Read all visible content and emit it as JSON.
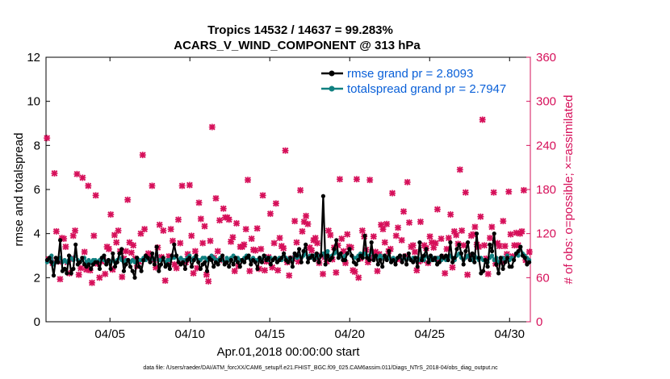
{
  "chart_data": {
    "type": "line",
    "title_line1": "Tropics 14532 / 14637 = 99.283%",
    "title_line2": "ACARS_V_WIND_COMPONENT @ 313 hPa",
    "xlabel": "Apr.01,2018 00:00:00 start",
    "ylabel_left": "rmse and totalspread",
    "ylabel_right": "# of obs: o=possible; ×=assimilated",
    "footer": "data file: /Users/raeder/DAI/ATM_forcXX/CAM6_setup/f.e21.FHIST_BGC.f09_025.CAM6assim.011/Diags_NTrS_2018-04/obs_diag_output.nc",
    "xlim": [
      1,
      31.3
    ],
    "ylim_left": [
      0,
      12
    ],
    "ylim_right": [
      0,
      360
    ],
    "x_ticks": [
      {
        "x": 5,
        "label": "04/05"
      },
      {
        "x": 10,
        "label": "04/10"
      },
      {
        "x": 15,
        "label": "04/15"
      },
      {
        "x": 20,
        "label": "04/20"
      },
      {
        "x": 25,
        "label": "04/25"
      },
      {
        "x": 30,
        "label": "04/30"
      }
    ],
    "y_ticks_left": [
      "0",
      "2",
      "4",
      "6",
      "8",
      "10",
      "12"
    ],
    "y_ticks_right": [
      "0",
      "60",
      "120",
      "180",
      "240",
      "300",
      "360"
    ],
    "colors": {
      "rmse": "#000000",
      "totalspread": "#108080",
      "obs": "#d6105a",
      "legend_text": "#0a60d8"
    },
    "series": [
      {
        "name": "rmse",
        "legend": "rmse grand pr = 2.8093",
        "values": [
          2.8,
          2.9,
          2.7,
          2.1,
          2.9,
          2.7,
          3.7,
          2.3,
          2.4,
          2.2,
          3.0,
          2.2,
          2.4,
          3.5,
          2.6,
          2.7,
          2.9,
          2.6,
          2.5,
          2.6,
          2.4,
          2.6,
          2.7,
          2.7,
          2.4,
          2.9,
          3.0,
          2.6,
          2.8,
          2.4,
          3.1,
          2.5,
          2.7,
          3.1,
          3.3,
          2.3,
          2.6,
          2.8,
          2.5,
          2.3,
          2.0,
          2.9,
          2.5,
          2.3,
          2.8,
          3.0,
          2.9,
          2.7,
          3.1,
          2.6,
          3.4,
          2.3,
          2.6,
          2.9,
          2.5,
          2.6,
          2.4,
          3.0,
          3.5,
          3.0,
          2.7,
          2.6,
          2.7,
          2.4,
          2.8,
          2.9,
          2.5,
          2.8,
          3.0,
          2.7,
          2.4,
          2.6,
          2.7,
          2.3,
          2.9,
          2.8,
          2.5,
          2.7,
          2.6,
          2.8,
          3.0,
          2.6,
          2.7,
          2.5,
          2.8,
          2.6,
          2.9,
          2.7,
          2.5,
          2.8,
          2.7,
          2.9,
          3.0,
          2.6,
          2.8,
          2.7,
          2.4,
          2.9,
          2.7,
          3.0,
          2.8,
          2.9,
          2.6,
          2.8,
          2.9,
          2.7,
          2.8,
          2.9,
          3.1,
          2.8,
          2.7,
          2.9,
          2.5,
          3.1,
          3.0,
          3.3,
          2.7,
          3.2,
          3.5,
          2.7,
          2.9,
          3.0,
          2.8,
          3.1,
          2.7,
          3.0,
          5.7,
          2.6,
          3.0,
          2.8,
          2.9,
          3.3,
          3.7,
          2.9,
          3.1,
          2.8,
          2.8,
          3.1,
          3.3,
          3.0,
          2.7,
          2.6,
          2.8,
          3.0,
          2.9,
          3.9,
          2.9,
          2.8,
          3.6,
          2.8,
          3.0,
          2.6,
          2.8,
          2.5,
          3.0,
          2.8,
          3.2,
          2.7,
          2.8,
          2.6,
          2.9,
          3.0,
          2.7,
          3.0,
          2.6,
          3.1,
          2.8,
          2.7,
          2.9,
          2.5,
          3.6,
          2.8,
          3.0,
          3.3,
          2.7,
          3.0,
          2.8,
          2.9,
          2.6,
          2.7,
          3.0,
          2.9,
          3.0,
          2.8,
          3.6,
          2.7,
          2.9,
          3.3,
          3.5,
          3.1,
          2.6,
          3.2,
          3.6,
          2.8,
          3.1,
          2.7,
          4.0,
          2.9,
          2.2,
          2.3,
          2.8,
          2.5,
          3.5,
          3.2,
          4.0,
          2.6,
          2.2,
          2.9,
          2.4,
          2.7,
          2.9,
          2.5,
          2.5,
          2.8,
          3.1,
          3.2,
          3.4,
          3.0,
          2.9,
          2.6,
          2.7
        ]
      },
      {
        "name": "totalspread",
        "legend": "totalspread grand pr = 2.7947",
        "values": [
          2.7,
          2.8,
          3.0,
          2.6,
          2.7,
          2.8,
          2.9,
          2.7,
          2.8,
          2.7,
          2.8,
          2.9,
          2.8,
          3.0,
          2.8,
          2.7,
          2.8,
          2.9,
          2.7,
          2.8,
          2.7,
          2.8,
          2.8,
          2.7,
          2.8,
          2.9,
          2.8,
          2.7,
          2.8,
          2.7,
          2.8,
          2.7,
          2.8,
          2.9,
          2.8,
          2.7,
          2.8,
          2.8,
          2.7,
          2.8,
          2.7,
          2.9,
          2.8,
          2.8,
          2.9,
          2.8,
          2.9,
          2.8,
          2.9,
          2.8,
          3.0,
          2.8,
          2.8,
          2.9,
          2.7,
          2.8,
          2.8,
          2.9,
          2.9,
          3.0,
          2.8,
          2.9,
          2.8,
          2.8,
          2.9,
          3.0,
          2.8,
          2.9,
          2.9,
          2.8,
          2.8,
          2.9,
          2.9,
          2.8,
          2.9,
          3.0,
          2.9,
          2.8,
          2.8,
          2.9,
          2.8,
          2.7,
          2.9,
          2.8,
          2.9,
          3.0,
          2.8,
          2.9,
          2.8,
          2.8,
          2.9,
          3.0,
          2.9,
          2.8,
          2.9,
          2.8,
          2.8,
          2.9,
          2.8,
          3.0,
          2.9,
          2.8,
          2.9,
          2.8,
          2.9,
          2.8,
          2.9,
          2.8,
          3.0,
          2.9,
          2.8,
          2.9,
          2.8,
          3.0,
          2.9,
          3.0,
          2.9,
          3.0,
          3.1,
          2.9,
          3.0,
          2.9,
          3.0,
          2.9,
          3.0,
          3.0,
          3.1,
          2.9,
          3.2,
          2.9,
          3.0,
          3.1,
          3.2,
          2.9,
          3.0,
          2.9,
          3.0,
          3.1,
          3.3,
          3.0,
          2.9,
          2.9,
          3.0,
          3.1,
          3.0,
          3.1,
          2.9,
          3.0,
          3.2,
          2.9,
          3.0,
          2.9,
          3.0,
          2.9,
          3.0,
          2.9,
          2.9,
          2.8,
          2.9,
          2.8,
          2.9,
          3.0,
          2.8,
          2.9,
          2.8,
          2.9,
          2.8,
          2.9,
          2.8,
          2.9,
          2.8,
          2.9,
          2.8,
          3.0,
          2.9,
          2.8,
          2.9,
          2.8,
          2.9,
          2.9,
          2.8,
          2.9,
          2.8,
          2.9,
          3.0,
          2.9,
          2.8,
          3.0,
          3.1,
          2.9,
          2.8,
          2.9,
          3.0,
          2.9,
          2.8,
          3.0,
          2.9,
          2.8,
          2.9,
          2.8,
          2.8,
          2.7,
          2.9,
          3.0,
          2.8,
          2.9,
          2.7,
          2.8,
          2.9,
          2.8,
          3.0,
          2.8,
          2.9,
          2.8,
          3.1,
          3.0,
          3.4,
          3.1,
          3.0,
          2.9,
          2.8
        ]
      },
      {
        "name": "obs_count",
        "legend": "",
        "values": [
          250,
          85,
          84,
          80,
          202,
          123,
          82,
          58,
          114,
          113,
          102,
          81,
          66,
          86,
          117,
          124,
          201,
          64,
          73,
          196,
          95,
          71,
          185,
          70,
          53,
          117,
          172,
          79,
          60,
          82,
          84,
          65,
          102,
          99,
          146,
          71,
          118,
          108,
          124,
          96,
          61,
          86,
          96,
          166,
          108,
          94,
          104,
          86,
          76,
          82,
          120,
          227,
          126,
          86,
          93,
          89,
          185,
          84,
          74,
          101,
          132,
          88,
          124,
          56,
          80,
          89,
          126,
          110,
          78,
          73,
          139,
          107,
          185,
          82,
          81,
          92,
          186,
          117,
          66,
          96,
          73,
          162,
          140,
          107,
          130,
          64,
          55,
          110,
          265,
          87,
          168,
          96,
          138,
          84,
          154,
          142,
          142,
          139,
          109,
          115,
          69,
          134,
          76,
          102,
          102,
          105,
          126,
          193,
          69,
          113,
          98,
          97,
          127,
          72,
          99,
          172,
          70,
          82,
          88,
          147,
          74,
          107,
          161,
          70,
          114,
          103,
          100,
          233,
          81,
          63,
          86,
          86,
          137,
          108,
          82,
          179,
          123,
          136,
          144,
          133,
          101,
          97,
          111,
          114,
          107,
          80,
          90,
          65,
          88,
          82,
          124,
          118,
          85,
          101,
          67,
          104,
          194,
          113,
          96,
          80,
          119,
          102,
          101,
          70,
          68,
          194,
          60,
          86,
          124,
          116,
          98,
          81,
          193,
          87,
          116,
          95,
          69,
          92,
          132,
          126,
          108,
          133,
          96,
          99,
          175,
          84,
          117,
          128,
          85,
          111,
          150,
          89,
          190,
          135,
          102,
          104,
          95,
          70,
          82,
          136,
          84,
          104,
          100,
          80,
          116,
          108,
          101,
          107,
          153,
          86,
          113,
          88,
          66,
          99,
          114,
          146,
          74,
          123,
          118,
          106,
          207,
          124,
          104,
          176,
          64,
          89,
          117,
          119,
          129,
          105,
          102,
          143,
          275,
          104,
          86,
          65,
          114,
          129,
          176,
          79,
          107,
          103,
          82,
          137,
          103,
          92,
          177,
          119,
          89,
          104,
          121,
          104,
          120,
          123,
          179,
          84,
          83,
          95
        ]
      }
    ]
  }
}
